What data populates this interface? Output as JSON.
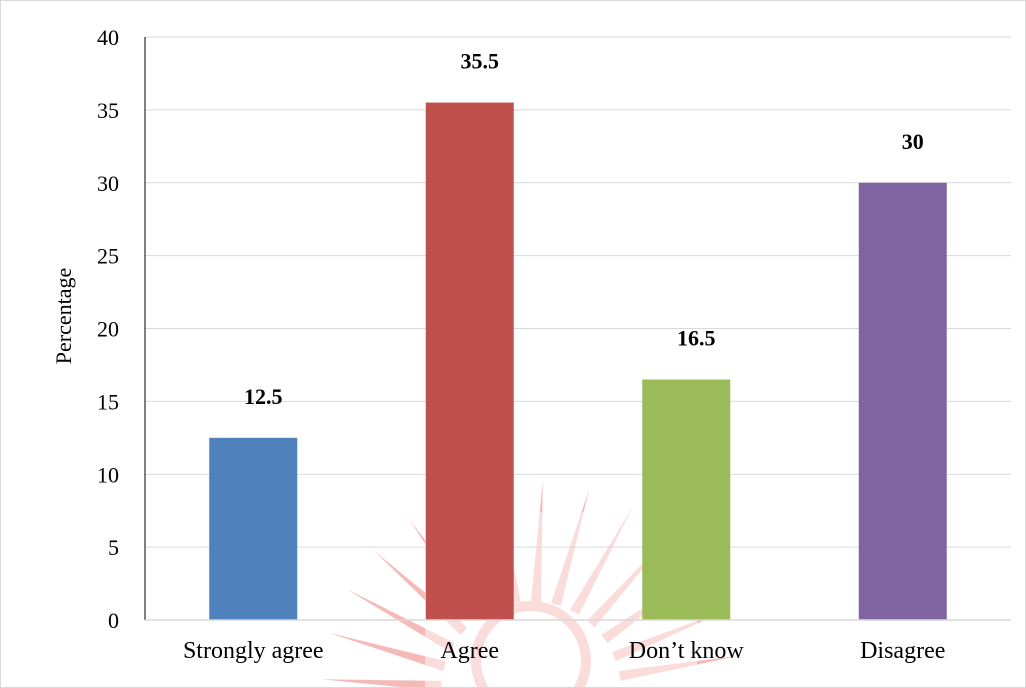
{
  "chart_data": {
    "type": "bar",
    "title": "",
    "xlabel": "",
    "ylabel": "Percentage",
    "categories": [
      "Strongly agree",
      "Agree",
      "Don’t know",
      "Disagree"
    ],
    "values": [
      12.5,
      35.5,
      16.5,
      30
    ],
    "data_labels": [
      "12.5",
      "35.5",
      "16.5",
      "30"
    ],
    "colors": [
      "#4f81bd",
      "#c0504d",
      "#9bbb59",
      "#8064a2"
    ],
    "ylim": [
      0,
      40
    ],
    "yticks": [
      0,
      5,
      10,
      15,
      20,
      25,
      30,
      35,
      40
    ],
    "grid": true,
    "legend": "none",
    "watermark_color": "#e53935"
  }
}
